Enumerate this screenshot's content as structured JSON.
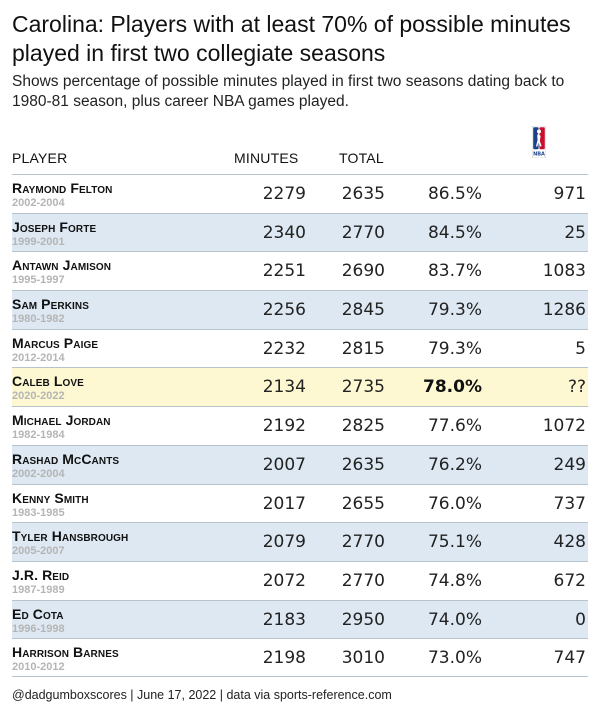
{
  "title": "Carolina: Players with at least 70% of possible minutes played in first two collegiate seasons",
  "subtitle": "Shows percentage of possible minutes played in first two seasons dating back to 1980-81 season, plus career NBA games played.",
  "columns": {
    "player": "PLAYER",
    "minutes": "MINUTES",
    "total": "TOTAL",
    "nba_icon": "nba-logo-icon"
  },
  "colors": {
    "row_alt": "#dde8f2",
    "row_highlight": "#fdf8d1",
    "nba_blue": "#1d428a",
    "nba_red": "#c8102e"
  },
  "chart_data": {
    "type": "table",
    "columns": [
      "PLAYER",
      "MINUTES",
      "TOTAL",
      "",
      ""
    ],
    "rows": [
      {
        "name": "Raymond Felton",
        "years": "2002-2004",
        "minutes": "2279",
        "total": "2635",
        "pct": "86.5%",
        "nba_games": "971"
      },
      {
        "name": "Joseph Forte",
        "years": "1999-2001",
        "minutes": "2340",
        "total": "2770",
        "pct": "84.5%",
        "nba_games": "25"
      },
      {
        "name": "Antawn Jamison",
        "years": "1995-1997",
        "minutes": "2251",
        "total": "2690",
        "pct": "83.7%",
        "nba_games": "1083"
      },
      {
        "name": "Sam Perkins",
        "years": "1980-1982",
        "minutes": "2256",
        "total": "2845",
        "pct": "79.3%",
        "nba_games": "1286"
      },
      {
        "name": "Marcus Paige",
        "years": "2012-2014",
        "minutes": "2232",
        "total": "2815",
        "pct": "79.3%",
        "nba_games": "5"
      },
      {
        "name": "Caleb Love",
        "years": "2020-2022",
        "minutes": "2134",
        "total": "2735",
        "pct": "78.0%",
        "nba_games": "??",
        "highlight": true
      },
      {
        "name": "Michael Jordan",
        "years": "1982-1984",
        "minutes": "2192",
        "total": "2825",
        "pct": "77.6%",
        "nba_games": "1072"
      },
      {
        "name": "Rashad McCants",
        "years": "2002-2004",
        "minutes": "2007",
        "total": "2635",
        "pct": "76.2%",
        "nba_games": "249"
      },
      {
        "name": "Kenny Smith",
        "years": "1983-1985",
        "minutes": "2017",
        "total": "2655",
        "pct": "76.0%",
        "nba_games": "737"
      },
      {
        "name": "Tyler Hansbrough",
        "years": "2005-2007",
        "minutes": "2079",
        "total": "2770",
        "pct": "75.1%",
        "nba_games": "428"
      },
      {
        "name": "J.R. Reid",
        "years": "1987-1989",
        "minutes": "2072",
        "total": "2770",
        "pct": "74.8%",
        "nba_games": "672"
      },
      {
        "name": "Ed Cota",
        "years": "1996-1998",
        "minutes": "2183",
        "total": "2950",
        "pct": "74.0%",
        "nba_games": "0"
      },
      {
        "name": "Harrison Barnes",
        "years": "2010-2012",
        "minutes": "2198",
        "total": "3010",
        "pct": "73.0%",
        "nba_games": "747"
      }
    ]
  },
  "footer": "@dadgumboxscores | June 17, 2022 | data via sports-reference.com"
}
